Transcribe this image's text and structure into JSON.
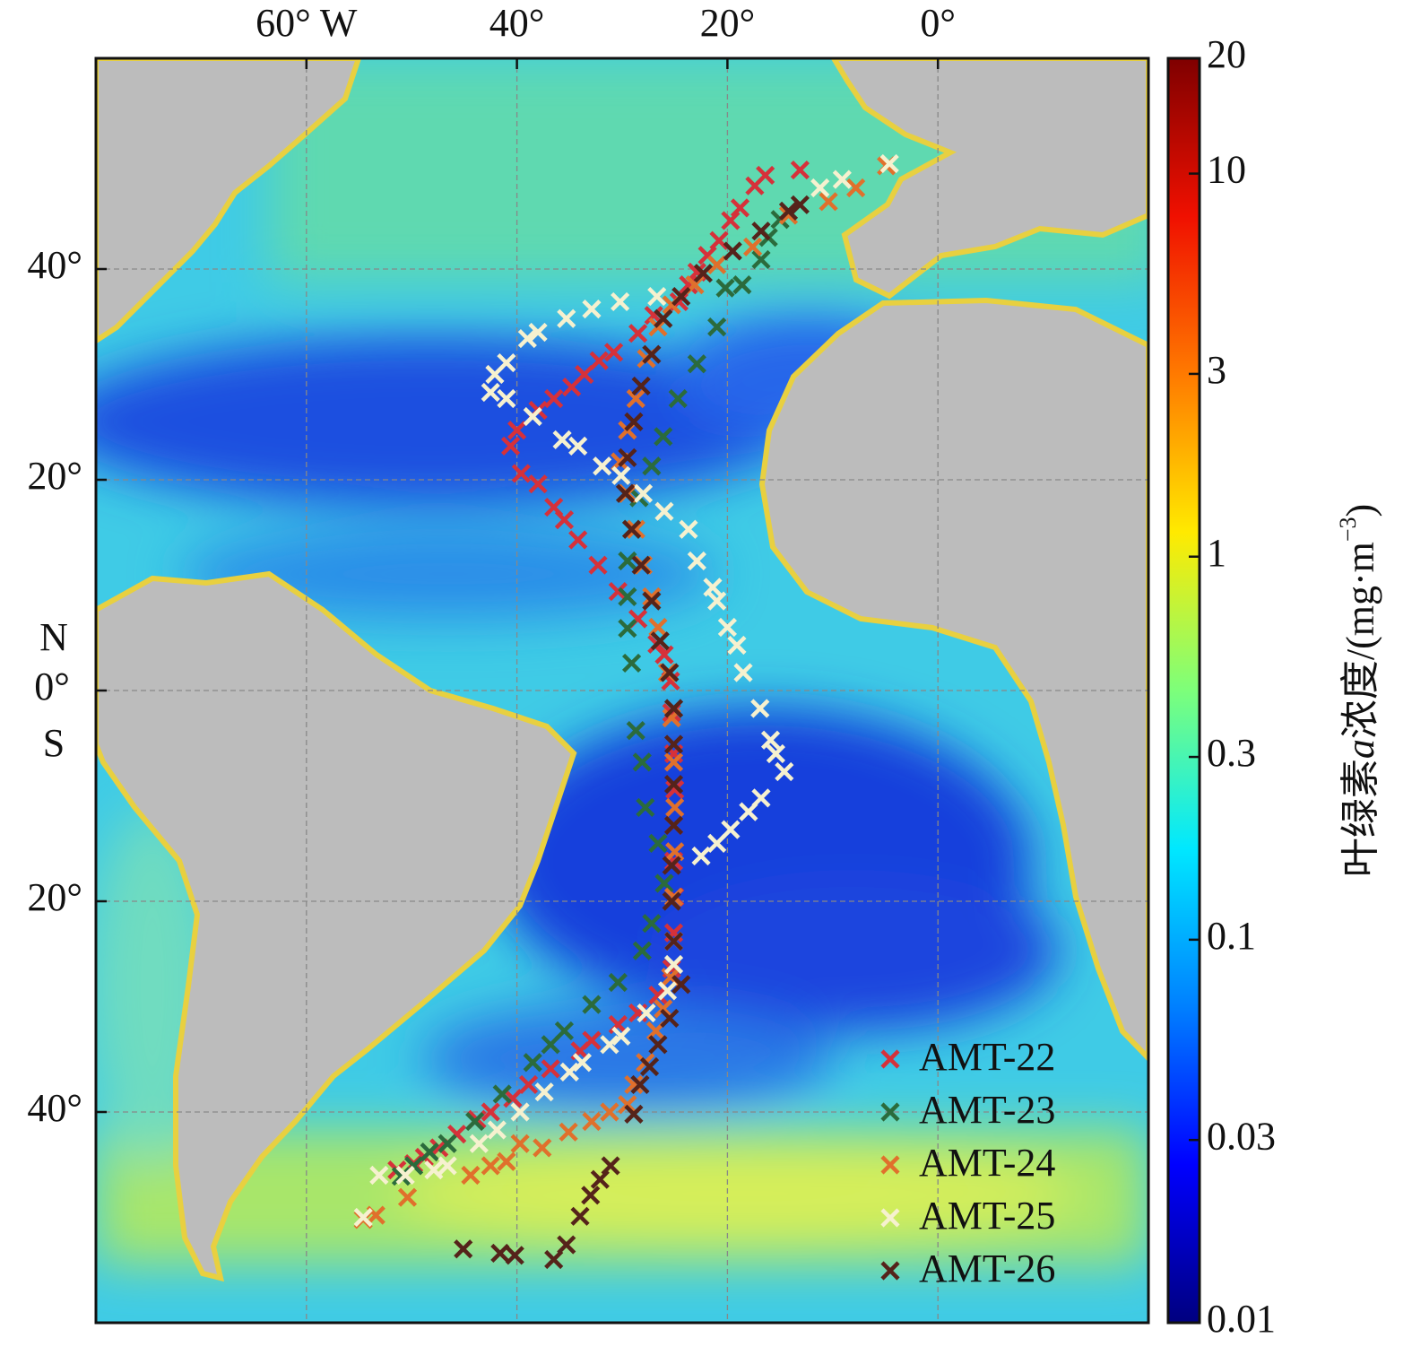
{
  "chart_data": {
    "type": "map",
    "xlim": [
      -80,
      20
    ],
    "ylim": [
      -60,
      60
    ],
    "xticks": [
      {
        "value": -60,
        "label": "60° W"
      },
      {
        "value": -40,
        "label": "40°"
      },
      {
        "value": -20,
        "label": "20°"
      },
      {
        "value": 0,
        "label": "0°"
      }
    ],
    "yticks": [
      {
        "value": 40,
        "label": "40°"
      },
      {
        "value": 20,
        "label": "20°"
      },
      {
        "value": 0,
        "label": "0°"
      },
      {
        "value": -20,
        "label": "20°"
      },
      {
        "value": -40,
        "label": "40°"
      }
    ],
    "hemisphere_labels": [
      "N",
      "S"
    ],
    "grid": true,
    "legend": "lower right",
    "series": [
      {
        "name": "AMT-22",
        "color": "#d6313a",
        "x": [
          -13.1,
          -16.4,
          -17.4,
          -18.8,
          -19.7,
          -20.8,
          -21.9,
          -22.9,
          -23.7,
          -24.6,
          -27.0,
          -28.5,
          -30.8,
          -32.2,
          -33.6,
          -34.8,
          -36.5,
          -38.0,
          -40.0,
          -40.6,
          -39.6,
          -38.0,
          -36.5,
          -35.5,
          -34.2,
          -32.3,
          -30.4,
          -28.5,
          -26.7,
          -26.0,
          -25.4,
          -25.3,
          -25.1,
          -25.0,
          -25.1,
          -25.1,
          -25.0,
          -25.1,
          -25.3,
          -26.6,
          -28.5,
          -30.4,
          -32.9,
          -34.0,
          -36.8,
          -38.9,
          -40.4,
          -42.5,
          -43.8,
          -45.7,
          -47.4,
          -48.8,
          -49.8,
          -51.4
        ],
        "y": [
          49.4,
          48.9,
          47.9,
          45.8,
          44.6,
          42.7,
          41.3,
          39.7,
          38.5,
          36.9,
          35.6,
          33.9,
          32.1,
          31.3,
          30.0,
          28.8,
          27.7,
          26.6,
          24.7,
          23.2,
          20.6,
          19.6,
          17.4,
          16.2,
          14.3,
          11.9,
          9.4,
          6.8,
          4.4,
          3.4,
          0.9,
          -2.1,
          -6.0,
          -9.4,
          -12.8,
          -16.2,
          -19.6,
          -23.0,
          -26.4,
          -28.9,
          -30.6,
          -31.7,
          -33.2,
          -34.2,
          -35.9,
          -37.4,
          -38.7,
          -40.0,
          -40.7,
          -42.1,
          -43.4,
          -44.3,
          -44.9,
          -45.5
        ]
      },
      {
        "name": "AMT-23",
        "color": "#2b6b3c",
        "x": [
          -15.0,
          -16.1,
          -16.8,
          -18.6,
          -20.2,
          -21.0,
          -22.9,
          -24.7,
          -26.1,
          -27.2,
          -28.4,
          -29.1,
          -29.5,
          -29.5,
          -29.5,
          -29.1,
          -28.7,
          -28.1,
          -27.8,
          -26.6,
          -26.0,
          -27.2,
          -28.1,
          -30.4,
          -32.9,
          -35.5,
          -36.8,
          -38.5,
          -41.4,
          -44.0,
          -46.6,
          -48.3,
          -49.8,
          -51.0
        ],
        "y": [
          44.7,
          43.0,
          40.9,
          38.5,
          38.2,
          34.5,
          31.0,
          27.7,
          24.1,
          21.3,
          18.3,
          15.3,
          12.3,
          8.9,
          5.9,
          2.6,
          -3.8,
          -6.8,
          -11.1,
          -14.5,
          -18.3,
          -22.1,
          -24.7,
          -27.7,
          -29.8,
          -32.3,
          -33.6,
          -35.3,
          -38.3,
          -40.9,
          -43.0,
          -43.8,
          -45.1,
          -46.1
        ]
      },
      {
        "name": "AMT-24",
        "color": "#e0702c",
        "x": [
          -4.9,
          -7.8,
          -10.4,
          -14.2,
          -17.6,
          -21.0,
          -23.1,
          -25.3,
          -26.6,
          -27.7,
          -28.7,
          -29.5,
          -30.2,
          -29.5,
          -28.7,
          -28.0,
          -27.2,
          -26.6,
          -25.7,
          -25.3,
          -25.1,
          -25.0,
          -25.0,
          -25.1,
          -25.1,
          -25.4,
          -26.1,
          -26.8,
          -27.8,
          -28.9,
          -29.5,
          -31.2,
          -32.9,
          -35.1,
          -37.6,
          -39.7,
          -41.0,
          -42.5,
          -44.4,
          -50.4,
          -53.4,
          -54.6
        ],
        "y": [
          49.8,
          47.7,
          46.4,
          45.1,
          42.1,
          40.4,
          38.5,
          36.6,
          34.5,
          31.5,
          27.7,
          24.7,
          21.7,
          18.7,
          15.3,
          11.9,
          8.9,
          6.0,
          1.7,
          -2.6,
          -6.8,
          -11.1,
          -15.3,
          -19.6,
          -23.8,
          -27.2,
          -30.2,
          -32.3,
          -35.3,
          -37.4,
          -39.3,
          -40.0,
          -40.9,
          -41.9,
          -43.4,
          -43.0,
          -44.7,
          -45.1,
          -46.0,
          -48.1,
          -49.8,
          -50.2
        ]
      },
      {
        "name": "AMT-25",
        "color": "#f6f1cf",
        "x": [
          -4.6,
          -9.1,
          -11.2,
          -26.7,
          -30.2,
          -32.9,
          -35.3,
          -38.0,
          -39.0,
          -41.0,
          -42.1,
          -42.5,
          -41.0,
          -38.5,
          -35.7,
          -34.2,
          -31.9,
          -30.1,
          -28.0,
          -26.0,
          -23.7,
          -22.9,
          -21.4,
          -21.0,
          -20.0,
          -19.1,
          -18.5,
          -16.9,
          -15.9,
          -15.4,
          -14.6,
          -16.8,
          -18.0,
          -19.7,
          -21.0,
          -22.5,
          -25.1,
          -25.1,
          -25.7,
          -27.7,
          -30.1,
          -31.2,
          -33.8,
          -35.0,
          -37.4,
          -39.7,
          -41.9,
          -43.6,
          -46.6,
          -47.9,
          -50.6,
          -53.1,
          -54.6
        ],
        "y": [
          50.0,
          48.5,
          47.7,
          37.4,
          36.9,
          36.2,
          35.3,
          34.0,
          33.4,
          31.1,
          30.0,
          28.3,
          27.7,
          26.0,
          23.8,
          23.2,
          21.3,
          20.4,
          18.7,
          17.0,
          15.3,
          12.3,
          9.8,
          8.5,
          6.0,
          4.3,
          1.7,
          -1.7,
          -4.7,
          -6.0,
          -7.7,
          -10.2,
          -11.5,
          -13.2,
          -14.5,
          -15.7,
          -23.8,
          -26.0,
          -28.5,
          -30.6,
          -32.8,
          -33.6,
          -35.3,
          -36.2,
          -38.1,
          -40.0,
          -41.7,
          -43.0,
          -45.1,
          -45.5,
          -46.0,
          -46.0,
          -50.0
        ]
      },
      {
        "name": "AMT-26",
        "color": "#55231a",
        "x": [
          -13.1,
          -14.2,
          -16.8,
          -19.5,
          -22.3,
          -24.4,
          -26.1,
          -27.2,
          -28.2,
          -28.9,
          -29.5,
          -29.7,
          -29.1,
          -28.2,
          -27.2,
          -26.4,
          -25.5,
          -25.1,
          -25.1,
          -25.1,
          -25.1,
          -25.3,
          -25.3,
          -25.1,
          -24.4,
          -25.5,
          -26.6,
          -27.4,
          -28.3,
          -28.9,
          -31.1,
          -32.1,
          -33.0,
          -34.0,
          -35.3,
          -36.5,
          -40.2,
          -41.6,
          -45.1
        ],
        "y": [
          46.1,
          45.5,
          43.6,
          41.7,
          39.6,
          37.4,
          35.3,
          31.9,
          28.9,
          25.5,
          22.1,
          18.7,
          15.3,
          11.9,
          8.5,
          4.7,
          1.7,
          -1.7,
          -5.1,
          -8.9,
          -12.8,
          -16.6,
          -20.0,
          -23.8,
          -27.9,
          -31.1,
          -33.6,
          -35.7,
          -37.4,
          -40.2,
          -45.1,
          -46.4,
          -47.9,
          -49.9,
          -52.6,
          -54.0,
          -53.6,
          -53.4,
          -53.0
        ]
      }
    ],
    "colorbar": {
      "label_parts": [
        "叶绿素",
        "a",
        "浓度/(mg·m",
        "−3",
        ")"
      ],
      "scale": "log",
      "lim": [
        0.01,
        20
      ],
      "ticks": [
        20,
        10,
        3,
        1,
        0.3,
        0.1,
        0.03,
        0.01
      ],
      "colormap": [
        "#00007f",
        "#0000ff",
        "#0080ff",
        "#00e8ff",
        "#7dff7a",
        "#ffea00",
        "#ff7a00",
        "#f01000",
        "#7f0000"
      ]
    }
  }
}
